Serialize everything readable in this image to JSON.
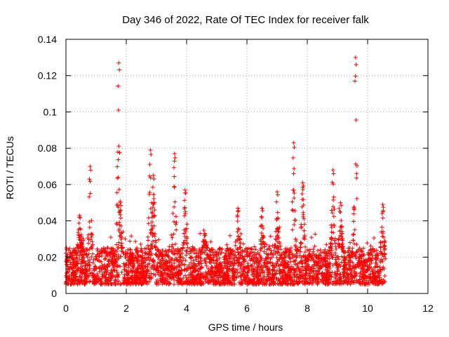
{
  "chart_data": {
    "type": "scatter",
    "title": "Day 346 of 2022, Rate Of TEC Index for receiver falk",
    "xlabel": "GPS time / hours",
    "ylabel": "ROTI / TECUs",
    "xlim": [
      0,
      12
    ],
    "ylim": [
      0,
      0.14
    ],
    "x_ticks": [
      "0",
      "2",
      "4",
      "6",
      "8",
      "10",
      "12"
    ],
    "y_ticks": [
      "0",
      "0.02",
      "0.04",
      "0.06",
      "0.08",
      "0.1",
      "0.12",
      "0.14"
    ],
    "grid": true,
    "marker": "+",
    "series_color": "#ff0000",
    "data_x_range": [
      0,
      10.6
    ],
    "baseline_band": [
      0.005,
      0.025
    ],
    "peaks": [
      {
        "x": 0.45,
        "y": 0.043
      },
      {
        "x": 0.8,
        "y": 0.07
      },
      {
        "x": 1.75,
        "y": 0.127
      },
      {
        "x": 1.8,
        "y": 0.05
      },
      {
        "x": 2.8,
        "y": 0.079
      },
      {
        "x": 2.9,
        "y": 0.065
      },
      {
        "x": 3.6,
        "y": 0.077
      },
      {
        "x": 3.95,
        "y": 0.057
      },
      {
        "x": 4.6,
        "y": 0.033
      },
      {
        "x": 5.7,
        "y": 0.047
      },
      {
        "x": 6.5,
        "y": 0.047
      },
      {
        "x": 7.0,
        "y": 0.056
      },
      {
        "x": 7.55,
        "y": 0.083
      },
      {
        "x": 7.85,
        "y": 0.061
      },
      {
        "x": 8.85,
        "y": 0.068
      },
      {
        "x": 9.1,
        "y": 0.05
      },
      {
        "x": 9.6,
        "y": 0.13
      },
      {
        "x": 10.5,
        "y": 0.049
      }
    ]
  }
}
